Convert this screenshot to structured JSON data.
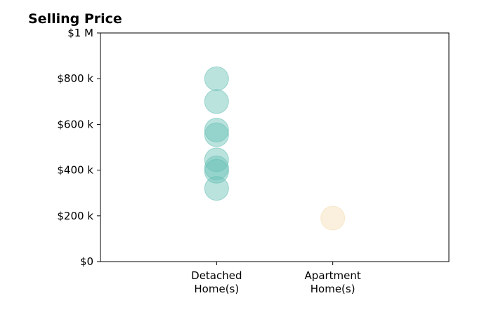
{
  "chart_data": {
    "type": "scatter",
    "title": "Selling Price",
    "xlabel": "",
    "ylabel": "",
    "categories": [
      "Detached\nHome(s)",
      "Apartment\nHome(s)"
    ],
    "ylim": [
      0,
      1000000
    ],
    "yticks": [
      {
        "value": 0,
        "label": "$0"
      },
      {
        "value": 200000,
        "label": "$200 k"
      },
      {
        "value": 400000,
        "label": "$400 k"
      },
      {
        "value": 600000,
        "label": "$600 k"
      },
      {
        "value": 800000,
        "label": "$800 k"
      },
      {
        "value": 1000000,
        "label": "$1 M"
      }
    ],
    "series": [
      {
        "category": "Detached\nHome(s)",
        "color": "#69c0b6",
        "values": [
          800000,
          700000,
          575000,
          555000,
          445000,
          410000,
          395000,
          320000
        ]
      },
      {
        "category": "Apartment\nHome(s)",
        "color": "#f5deb3",
        "values": [
          190000
        ]
      }
    ],
    "grid": false,
    "legend": "none"
  }
}
